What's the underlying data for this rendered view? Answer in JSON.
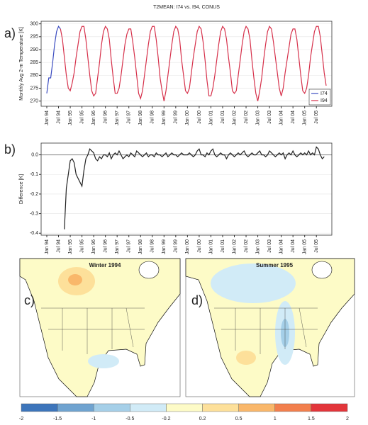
{
  "chart_data": [
    {
      "type": "line",
      "title": "T2MEAN: I74 vs. I94, CONUS",
      "panel": "a)",
      "ylabel": "Monthly Avg 2-m Temperature [K]",
      "categories": [
        "Jan 94",
        null,
        null,
        null,
        null,
        null,
        "Jul 94",
        null,
        null,
        null,
        null,
        null,
        "Jan 95",
        null,
        null,
        null,
        null,
        null,
        "Jul 95",
        null,
        null,
        null,
        null,
        null,
        "Jan 96",
        null,
        null,
        null,
        null,
        null,
        "Jul 96",
        null,
        null,
        null,
        null,
        null,
        "Jan 97",
        null,
        null,
        null,
        null,
        null,
        "Jul 97",
        null,
        null,
        null,
        null,
        null,
        "Jan 98",
        null,
        null,
        null,
        null,
        null,
        "Jul 98",
        null,
        null,
        null,
        null,
        null,
        "Jan 99",
        null,
        null,
        null,
        null,
        null,
        "Jul 99",
        null,
        null,
        null,
        null,
        null,
        "Jan 00",
        null,
        null,
        null,
        null,
        null,
        "Jul 00",
        null,
        null,
        null,
        null,
        null,
        "Jan 01",
        null,
        null,
        null,
        null,
        null,
        "Jul 01",
        null,
        null,
        null,
        null,
        null,
        "Jan 02",
        null,
        null,
        null,
        null,
        null,
        "Jul 02",
        null,
        null,
        null,
        null,
        null,
        "Jan 03",
        null,
        null,
        null,
        null,
        null,
        "Jul 03",
        null,
        null,
        null,
        null,
        null,
        "Jan 04",
        null,
        null,
        null,
        null,
        null,
        "Jul 04",
        null,
        null,
        null,
        null,
        null,
        "Jan 05",
        null,
        null,
        null,
        null,
        null,
        "Jul 05",
        null,
        null,
        null,
        null,
        null
      ],
      "series": [
        {
          "name": "I74",
          "color": "#3b4cc0",
          "values": [
            273,
            279,
            279,
            285,
            292,
            297,
            299,
            298,
            null,
            null,
            null,
            null,
            null,
            null,
            null,
            null,
            null,
            null,
            null,
            null,
            null,
            null,
            null,
            null,
            null,
            null,
            null,
            null,
            null,
            null,
            null,
            null,
            null,
            null,
            null,
            null,
            null,
            null,
            null,
            null,
            null,
            null,
            null,
            null,
            null,
            null,
            null,
            null,
            null,
            null,
            null,
            null,
            null,
            null,
            null,
            null,
            null,
            null,
            null,
            null,
            null,
            null,
            null,
            null,
            null,
            null,
            null,
            null,
            null,
            null,
            null,
            null,
            null,
            null,
            null,
            null,
            null,
            null,
            null,
            null,
            null,
            null,
            null,
            null,
            null,
            null,
            null,
            null,
            null,
            null,
            null,
            null,
            null,
            null,
            null,
            null,
            null,
            null,
            null,
            null,
            null,
            null,
            null,
            null,
            null,
            null,
            null,
            null,
            null,
            null,
            null,
            null,
            null,
            null,
            null,
            null,
            null,
            null,
            null,
            null,
            null,
            null,
            null,
            null,
            null,
            null,
            null,
            null,
            null,
            null,
            null,
            null,
            null,
            null,
            null,
            null,
            null,
            null,
            null,
            null,
            null,
            null,
            null,
            null
          ]
        },
        {
          "name": "I94",
          "color": "#d6304a",
          "values": [
            null,
            null,
            null,
            null,
            null,
            null,
            null,
            298,
            294,
            287,
            280,
            275,
            274,
            277,
            281,
            287,
            292,
            297,
            299,
            299,
            294,
            287,
            280,
            274,
            272,
            273,
            279,
            285,
            292,
            297,
            299,
            298,
            294,
            286,
            279,
            273,
            273,
            275,
            280,
            286,
            292,
            296,
            298,
            298,
            293,
            287,
            280,
            273,
            271,
            274,
            280,
            286,
            292,
            297,
            299,
            299,
            294,
            287,
            279,
            274,
            270,
            274,
            280,
            286,
            292,
            297,
            299,
            298,
            294,
            286,
            280,
            274,
            273,
            275,
            281,
            287,
            292,
            297,
            299,
            298,
            293,
            286,
            278,
            272,
            272,
            275,
            280,
            286,
            292,
            297,
            299,
            298,
            294,
            287,
            281,
            274,
            273,
            274,
            280,
            286,
            292,
            297,
            299,
            298,
            294,
            286,
            279,
            273,
            270,
            274,
            279,
            286,
            292,
            297,
            299,
            298,
            293,
            287,
            281,
            275,
            272,
            275,
            281,
            286,
            291,
            296,
            298,
            298,
            294,
            287,
            280,
            274,
            273,
            275,
            280,
            287,
            292,
            297,
            299,
            299,
            295,
            288,
            281,
            276
          ]
        }
      ],
      "ylim": [
        268,
        301
      ],
      "yticks": [
        270,
        275,
        280,
        285,
        290,
        295,
        300
      ],
      "grid": true,
      "legend": "lower right"
    },
    {
      "type": "line",
      "panel": "b)",
      "ylabel": "Difference [K]",
      "categories": [
        "Jan 94",
        null,
        null,
        null,
        null,
        null,
        "Jul 94",
        null,
        null,
        null,
        null,
        null,
        "Jan 95",
        null,
        null,
        null,
        null,
        null,
        "Jul 95",
        null,
        null,
        null,
        null,
        null,
        "Jan 96",
        null,
        null,
        null,
        null,
        null,
        "Jul 96",
        null,
        null,
        null,
        null,
        null,
        "Jan 97",
        null,
        null,
        null,
        null,
        null,
        "Jul 97",
        null,
        null,
        null,
        null,
        null,
        "Jan 98",
        null,
        null,
        null,
        null,
        null,
        "Jul 98",
        null,
        null,
        null,
        null,
        null,
        "Jan 99",
        null,
        null,
        null,
        null,
        null,
        "Jul 99",
        null,
        null,
        null,
        null,
        null,
        "Jan 00",
        null,
        null,
        null,
        null,
        null,
        "Jul 00",
        null,
        null,
        null,
        null,
        null,
        "Jan 01",
        null,
        null,
        null,
        null,
        null,
        "Jul 01",
        null,
        null,
        null,
        null,
        null,
        "Jan 02",
        null,
        null,
        null,
        null,
        null,
        "Jul 02",
        null,
        null,
        null,
        null,
        null,
        "Jan 03",
        null,
        null,
        null,
        null,
        null,
        "Jul 03",
        null,
        null,
        null,
        null,
        null,
        "Jan 04",
        null,
        null,
        null,
        null,
        null,
        "Jul 04",
        null,
        null,
        null,
        null,
        null,
        "Jan 05",
        null,
        null,
        null,
        null,
        null,
        "Jul 05",
        null,
        null,
        null,
        null,
        null
      ],
      "series": [
        {
          "color": "#222222",
          "values": [
            null,
            null,
            null,
            null,
            null,
            null,
            null,
            null,
            null,
            -0.38,
            -0.17,
            -0.1,
            -0.03,
            -0.02,
            -0.04,
            -0.1,
            -0.12,
            -0.14,
            -0.16,
            -0.08,
            -0.02,
            0.0,
            0.03,
            0.02,
            0.01,
            -0.02,
            -0.03,
            -0.01,
            -0.02,
            0.0,
            0.0,
            -0.01,
            0.01,
            -0.02,
            0.0,
            0.01,
            0.0,
            0.02,
            0.0,
            -0.02,
            -0.01,
            0.0,
            -0.01,
            0.01,
            0.0,
            -0.01,
            0.02,
            0.01,
            0.0,
            -0.01,
            0.0,
            0.01,
            -0.01,
            0.0,
            0.0,
            -0.01,
            0.01,
            0.0,
            0.0,
            -0.01,
            0.0,
            0.01,
            -0.01,
            0.0,
            0.01,
            0.0,
            0.0,
            -0.01,
            0.0,
            0.01,
            0.0,
            0.0,
            0.0,
            0.01,
            0.0,
            -0.01,
            0.0,
            0.02,
            0.03,
            0.0,
            0.0,
            -0.01,
            0.01,
            0.0,
            0.02,
            0.03,
            0.0,
            -0.01,
            0.0,
            0.01,
            0.0,
            0.0,
            -0.02,
            0.0,
            0.01,
            0.0,
            -0.01,
            0.0,
            0.01,
            0.0,
            0.01,
            0.02,
            0.0,
            -0.01,
            0.0,
            0.01,
            0.0,
            0.0,
            0.01,
            0.02,
            0.0,
            0.0,
            -0.01,
            0.0,
            0.02,
            0.01,
            0.0,
            -0.01,
            0.0,
            0.01,
            0.0,
            0.01,
            -0.02,
            0.0,
            0.01,
            0.0,
            0.02,
            0.0,
            -0.01,
            0.0,
            0.01,
            0.0,
            0.01,
            0.0,
            0.02,
            0.0,
            0.01,
            0.0,
            0.04,
            0.03,
            0.0,
            -0.02,
            -0.01,
            null
          ]
        }
      ],
      "ylim": [
        -0.41,
        0.06
      ],
      "yticks": [
        {
          "value": 0,
          "label": "0.0"
        },
        -0.1,
        -0.2,
        -0.3,
        -0.4
      ],
      "grid": true
    }
  ],
  "maps": [
    {
      "panel": "c)",
      "title": "Winter 1994"
    },
    {
      "panel": "d)",
      "title": "Summer 1995"
    }
  ],
  "colorbar": {
    "ticks": [
      -2,
      -1.5,
      -1,
      -0.5,
      -0.2,
      0.2,
      0.5,
      1,
      1.5,
      2
    ],
    "colors": [
      "#3d75bb",
      "#6fa3d0",
      "#a5cfe8",
      "#d1ebf7",
      "#fdfbc7",
      "#fde09a",
      "#f9b76a",
      "#f27f4d",
      "#e3353a"
    ]
  }
}
